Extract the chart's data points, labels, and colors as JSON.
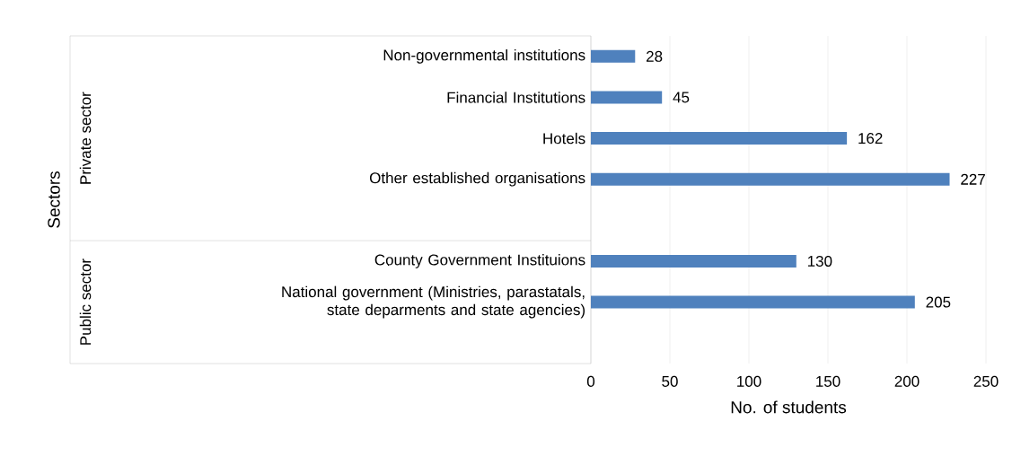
{
  "chart_data": {
    "type": "bar",
    "orientation": "horizontal",
    "xlabel": "No. of students",
    "categories": [
      "Non-governmental institutions",
      "Financial Institutions",
      "Hotels",
      "Other established organisations",
      null,
      "County Government Instituions",
      "National government (Ministries, parastatals, state deparments and state agencies)",
      null
    ],
    "values": [
      28,
      45,
      162,
      227,
      null,
      130,
      205,
      null
    ],
    "color": "#4f81bd",
    "annotations": [
      "Sectors",
      "Private sector",
      "Public sector"
    ],
    "xlim": [
      0,
      250
    ],
    "xticks": [
      0,
      50,
      100,
      150,
      200,
      250
    ],
    "grid": "x",
    "data_labels": true
  }
}
